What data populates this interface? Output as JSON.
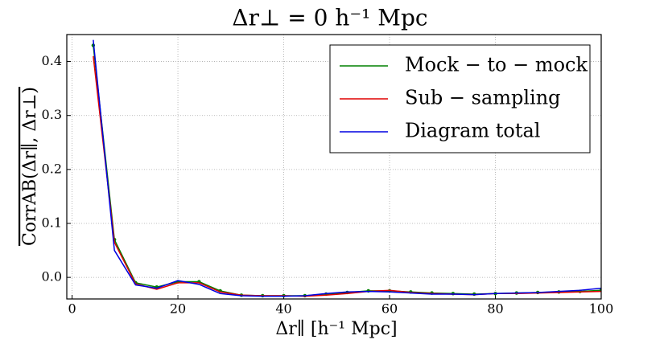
{
  "chart_data": {
    "type": "line",
    "title": "Δr⊥ = 0 h⁻¹ Mpc",
    "x_label": "Δr∥ [h⁻¹ Mpc]",
    "y_label": "CorrAB(Δr∥, Δr⊥)",
    "x": [
      4,
      8,
      12,
      16,
      20,
      24,
      28,
      32,
      36,
      40,
      44,
      48,
      52,
      56,
      60,
      64,
      68,
      72,
      76,
      80,
      84,
      88,
      92,
      96,
      100
    ],
    "series": [
      {
        "name": "Mock − to − mock",
        "color": "#008000",
        "markers": true,
        "values": [
          0.43,
          0.07,
          -0.01,
          -0.018,
          -0.008,
          -0.008,
          -0.025,
          -0.033,
          -0.034,
          -0.034,
          -0.034,
          -0.031,
          -0.028,
          -0.025,
          -0.025,
          -0.027,
          -0.029,
          -0.03,
          -0.031,
          -0.03,
          -0.029,
          -0.028,
          -0.027,
          -0.026,
          -0.024
        ]
      },
      {
        "name": "Sub − sampling",
        "color": "#e00000",
        "markers": false,
        "values": [
          0.41,
          0.065,
          -0.012,
          -0.022,
          -0.01,
          -0.01,
          -0.027,
          -0.033,
          -0.034,
          -0.034,
          -0.035,
          -0.033,
          -0.03,
          -0.026,
          -0.024,
          -0.028,
          -0.03,
          -0.031,
          -0.032,
          -0.03,
          -0.03,
          -0.029,
          -0.028,
          -0.027,
          -0.026
        ]
      },
      {
        "name": "Diagram total",
        "color": "#0000e0",
        "markers": false,
        "values": [
          0.44,
          0.05,
          -0.014,
          -0.02,
          -0.006,
          -0.013,
          -0.03,
          -0.034,
          -0.035,
          -0.035,
          -0.034,
          -0.03,
          -0.027,
          -0.026,
          -0.027,
          -0.029,
          -0.031,
          -0.031,
          -0.032,
          -0.03,
          -0.029,
          -0.028,
          -0.026,
          -0.024,
          -0.02
        ]
      }
    ],
    "xlim": [
      -1,
      100
    ],
    "xticks": [
      0,
      20,
      40,
      60,
      80,
      100
    ],
    "ylim": [
      -0.04,
      0.45
    ],
    "yticks": [
      {
        "value": 0,
        "label": "0.0"
      },
      0.1,
      0.2,
      0.3,
      0.4
    ],
    "grid": true,
    "legend": "upper right"
  }
}
